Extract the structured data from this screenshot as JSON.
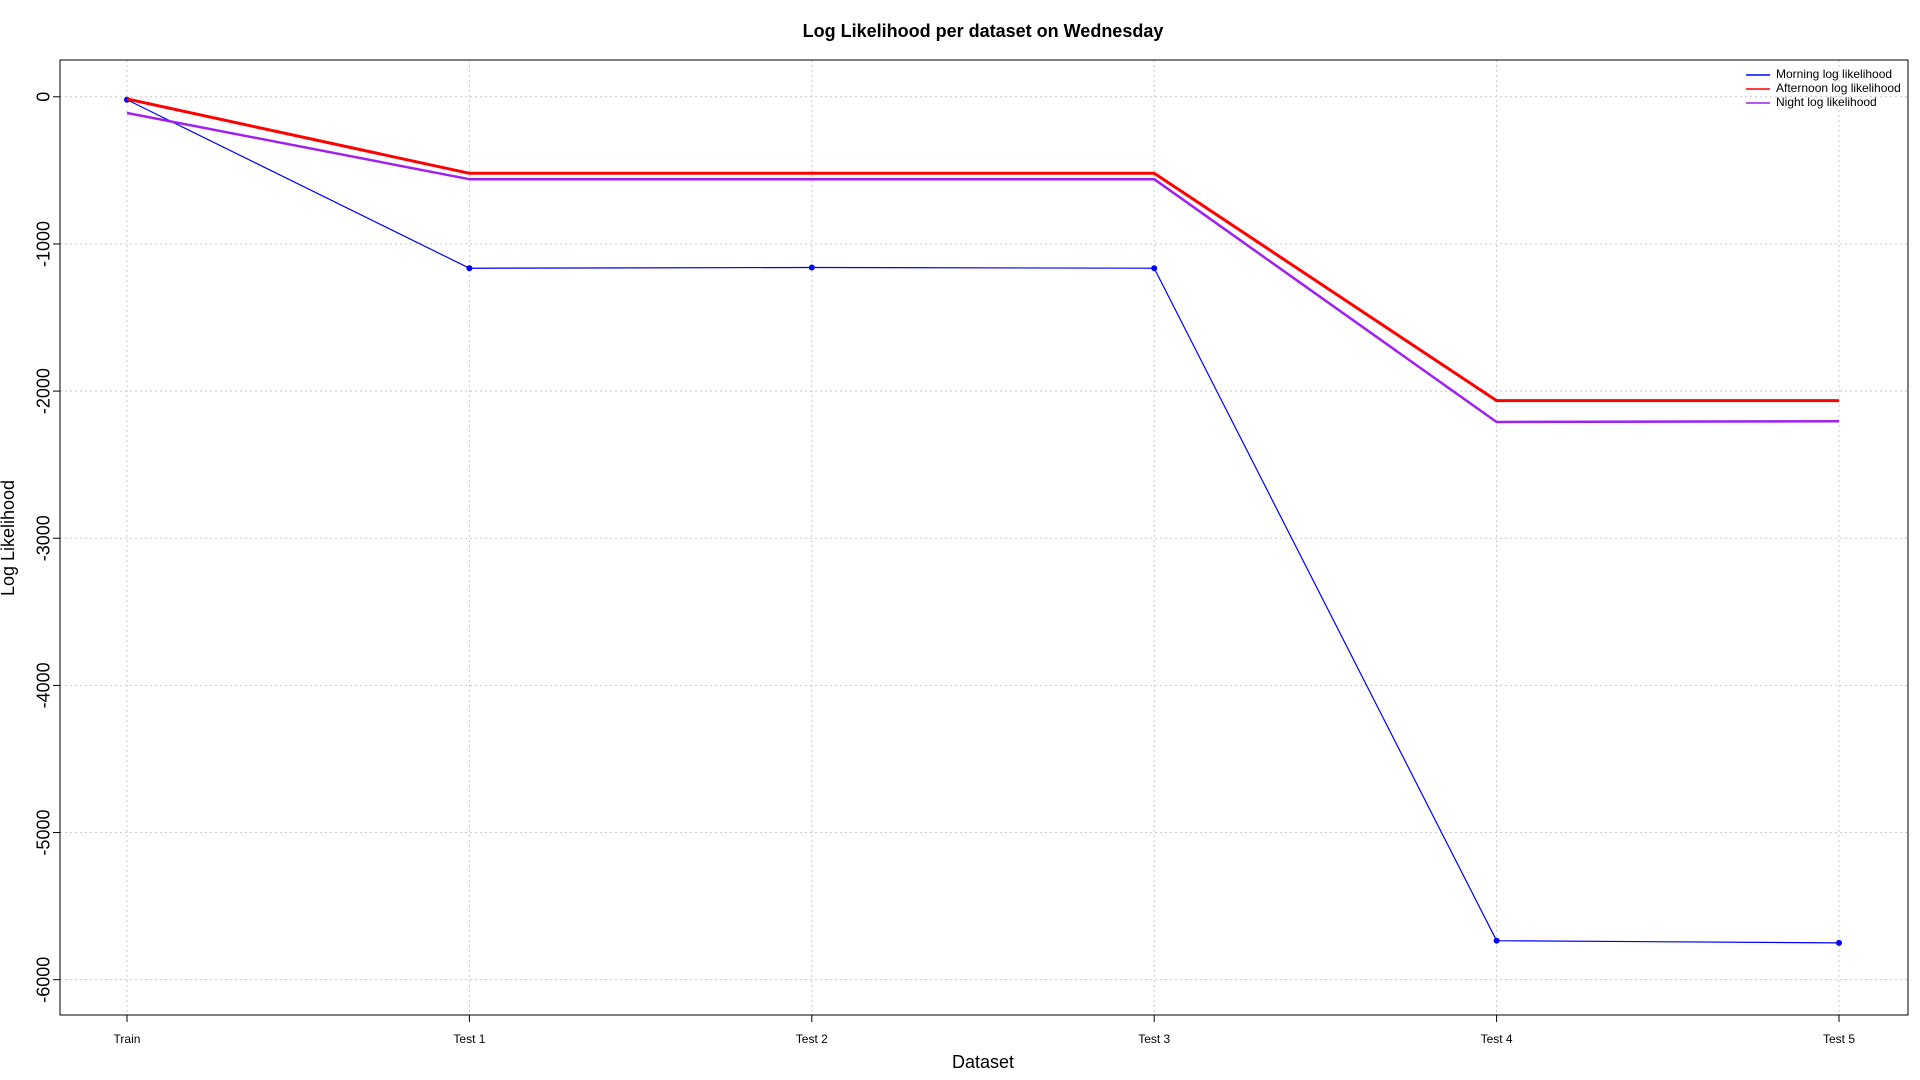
{
  "chart_data": {
    "type": "line",
    "title": "Log Likelihood per dataset on Wednesday",
    "xlabel": "Dataset",
    "ylabel": "Log Likelihood",
    "categories": [
      "Train",
      "Test 1",
      "Test 2",
      "Test 3",
      "Test 4",
      "Test 5"
    ],
    "yticks": [
      0,
      -1000,
      -2000,
      -3000,
      -4000,
      -5000,
      -6000
    ],
    "ytick_labels": [
      "0",
      "-1000",
      "-2000",
      "-3000",
      "-4000",
      "-5000",
      "-6000"
    ],
    "ylim": [
      -6240,
      250
    ],
    "grid": true,
    "legend_position": "top-right",
    "series": [
      {
        "name": "Morning log likelihood",
        "color": "#0000ff",
        "values": [
          -20,
          -1165,
          -1160,
          -1165,
          -5735,
          -5750
        ],
        "markers": true,
        "line_width": 1.2
      },
      {
        "name": "Afternoon log likelihood",
        "color": "#ff0000",
        "values": [
          -15,
          -520,
          -520,
          -520,
          -2065,
          -2065
        ],
        "markers": false,
        "line_width": 3
      },
      {
        "name": "Night log likelihood",
        "color": "#a020f0",
        "values": [
          -110,
          -560,
          -560,
          -560,
          -2210,
          -2205
        ],
        "markers": false,
        "line_width": 2.5
      }
    ]
  }
}
